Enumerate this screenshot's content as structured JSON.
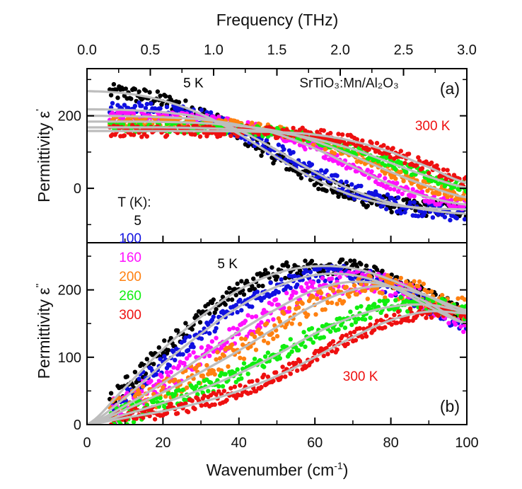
{
  "chart_data": {
    "type": "scatter",
    "shared": {
      "x_axis": {
        "label": "Wavenumber (cm",
        "label_sup": "-1",
        "label_close": ")",
        "range": [
          0,
          100
        ],
        "ticks": [
          0,
          20,
          40,
          60,
          80,
          100
        ],
        "tick_labels": [
          "0",
          "20",
          "40",
          "60",
          "80",
          "100"
        ],
        "minor_ticks": [
          10,
          30,
          50,
          70,
          90
        ]
      },
      "top_axis": {
        "label": "Frequency (THz)",
        "range": [
          0,
          3.0
        ],
        "ticks": [
          0,
          0.5,
          1.0,
          1.5,
          2.0,
          2.5,
          3.0
        ],
        "tick_labels": [
          "0.0",
          "0.5",
          "1.0",
          "1.5",
          "2.0",
          "2.5",
          "3.0"
        ],
        "minor_ticks": [
          0.25,
          0.75,
          1.25,
          1.75,
          2.25,
          2.75
        ]
      },
      "legend": {
        "title": "T (K):",
        "placement": "left-middle",
        "entries": [
          {
            "label": "5",
            "color": "#000000"
          },
          {
            "label": "100",
            "color": "#1010e0"
          },
          {
            "label": "160",
            "color": "#ff10ff"
          },
          {
            "label": "200",
            "color": "#ff8010"
          },
          {
            "label": "260",
            "color": "#10ee10"
          },
          {
            "label": "300",
            "color": "#ee1010"
          }
        ]
      },
      "fit_color": "#bdbdbd",
      "data_x_start": 6
    },
    "panels": [
      {
        "id": "a",
        "panel_label": "(a)",
        "ylabel": "Permittivity ε",
        "ylabel_sup": "'",
        "ylim": [
          -150,
          330
        ],
        "yticks": [
          0,
          200
        ],
        "ytick_labels": [
          "0",
          "200"
        ],
        "yminor": [
          -100,
          100,
          300
        ],
        "annotations": [
          {
            "text": "5 K",
            "x": 28,
            "y": 278,
            "color": "#000000"
          },
          {
            "text": "300 K",
            "x": 91,
            "y": 160,
            "color": "#ee1010"
          },
          {
            "text": "SrTiO₃:Mn/Al₂O₃",
            "x": 69,
            "y": 278,
            "color": "#111111"
          }
        ],
        "series": [
          {
            "name": "5 K",
            "color": "#000000",
            "noise": 22,
            "x": [
              0,
              10,
              20,
              30,
              40,
              50,
              60,
              70,
              80,
              90,
              100
            ],
            "fit": [
              268,
              262,
              242,
              205,
              150,
              85,
              25,
              -20,
              -45,
              -55,
              -58
            ]
          },
          {
            "name": "100 K",
            "color": "#1010e0",
            "noise": 22,
            "x": [
              0,
              10,
              20,
              30,
              40,
              50,
              60,
              70,
              80,
              90,
              100
            ],
            "fit": [
              218,
              216,
              210,
              195,
              160,
              105,
              45,
              -5,
              -40,
              -60,
              -70
            ]
          },
          {
            "name": "160 K",
            "color": "#ff10ff",
            "noise": 14,
            "x": [
              0,
              10,
              20,
              30,
              40,
              50,
              60,
              70,
              80,
              90,
              100
            ],
            "fit": [
              200,
              199,
              196,
              190,
              175,
              150,
              110,
              60,
              10,
              -25,
              -45
            ]
          },
          {
            "name": "200 K",
            "color": "#ff8010",
            "noise": 14,
            "x": [
              0,
              10,
              20,
              30,
              40,
              50,
              60,
              70,
              80,
              90,
              100
            ],
            "fit": [
              184,
              184,
              183,
              180,
              172,
              158,
              130,
              90,
              45,
              5,
              -25
            ]
          },
          {
            "name": "260 K",
            "color": "#10ee10",
            "noise": 14,
            "x": [
              0,
              10,
              20,
              30,
              40,
              50,
              60,
              70,
              80,
              90,
              100
            ],
            "fit": [
              168,
              168,
              168,
              166,
              162,
              154,
              136,
              108,
              70,
              32,
              2
            ]
          },
          {
            "name": "300 K",
            "color": "#ee1010",
            "noise": 16,
            "x": [
              0,
              10,
              20,
              30,
              40,
              50,
              60,
              70,
              80,
              90,
              100
            ],
            "fit": [
              158,
              158,
              158,
              158,
              157,
              155,
              148,
              130,
              100,
              58,
              15
            ]
          }
        ]
      },
      {
        "id": "b",
        "panel_label": "(b)",
        "ylabel": "Permittivity ε",
        "ylabel_sup": "''",
        "ylim": [
          0,
          270
        ],
        "yticks": [
          0,
          100,
          200
        ],
        "ytick_labels": [
          "0",
          "100",
          "200"
        ],
        "yminor": [
          50,
          150,
          250
        ],
        "annotations": [
          {
            "text": "5 K",
            "x": 37,
            "y": 232,
            "color": "#000000"
          },
          {
            "text": "300 K",
            "x": 72,
            "y": 65,
            "color": "#ee1010"
          }
        ],
        "series": [
          {
            "name": "5 K",
            "color": "#000000",
            "noise": 12,
            "x": [
              0,
              10,
              20,
              30,
              40,
              50,
              60,
              70,
              80,
              90,
              100
            ],
            "fit": [
              0,
              55,
              112,
              160,
              200,
              225,
              235,
              232,
              215,
              190,
              165
            ]
          },
          {
            "name": "100 K",
            "color": "#1010e0",
            "noise": 12,
            "x": [
              0,
              10,
              20,
              30,
              40,
              50,
              60,
              70,
              80,
              90,
              100
            ],
            "fit": [
              0,
              40,
              90,
              135,
              175,
              205,
              222,
              222,
              205,
              175,
              150
            ]
          },
          {
            "name": "160 K",
            "color": "#ff10ff",
            "noise": 16,
            "x": [
              0,
              10,
              20,
              30,
              40,
              50,
              60,
              70,
              80,
              90,
              100
            ],
            "fit": [
              0,
              28,
              62,
              100,
              138,
              172,
              200,
              212,
              205,
              180,
              150
            ]
          },
          {
            "name": "200 K",
            "color": "#ff8010",
            "noise": 18,
            "x": [
              0,
              10,
              20,
              30,
              40,
              50,
              60,
              70,
              80,
              90,
              100
            ],
            "fit": [
              0,
              22,
              48,
              78,
              110,
              145,
              178,
              200,
              205,
              190,
              170
            ]
          },
          {
            "name": "260 K",
            "color": "#10ee10",
            "noise": 12,
            "x": [
              0,
              10,
              20,
              30,
              40,
              50,
              60,
              70,
              80,
              90,
              100
            ],
            "fit": [
              0,
              15,
              32,
              52,
              76,
              104,
              135,
              160,
              175,
              178,
              168
            ]
          },
          {
            "name": "300 K",
            "color": "#ee1010",
            "noise": 10,
            "x": [
              0,
              10,
              20,
              30,
              40,
              50,
              60,
              70,
              80,
              90,
              100
            ],
            "fit": [
              0,
              10,
              20,
              33,
              50,
              72,
              100,
              130,
              155,
              168,
              165
            ]
          }
        ]
      }
    ]
  }
}
